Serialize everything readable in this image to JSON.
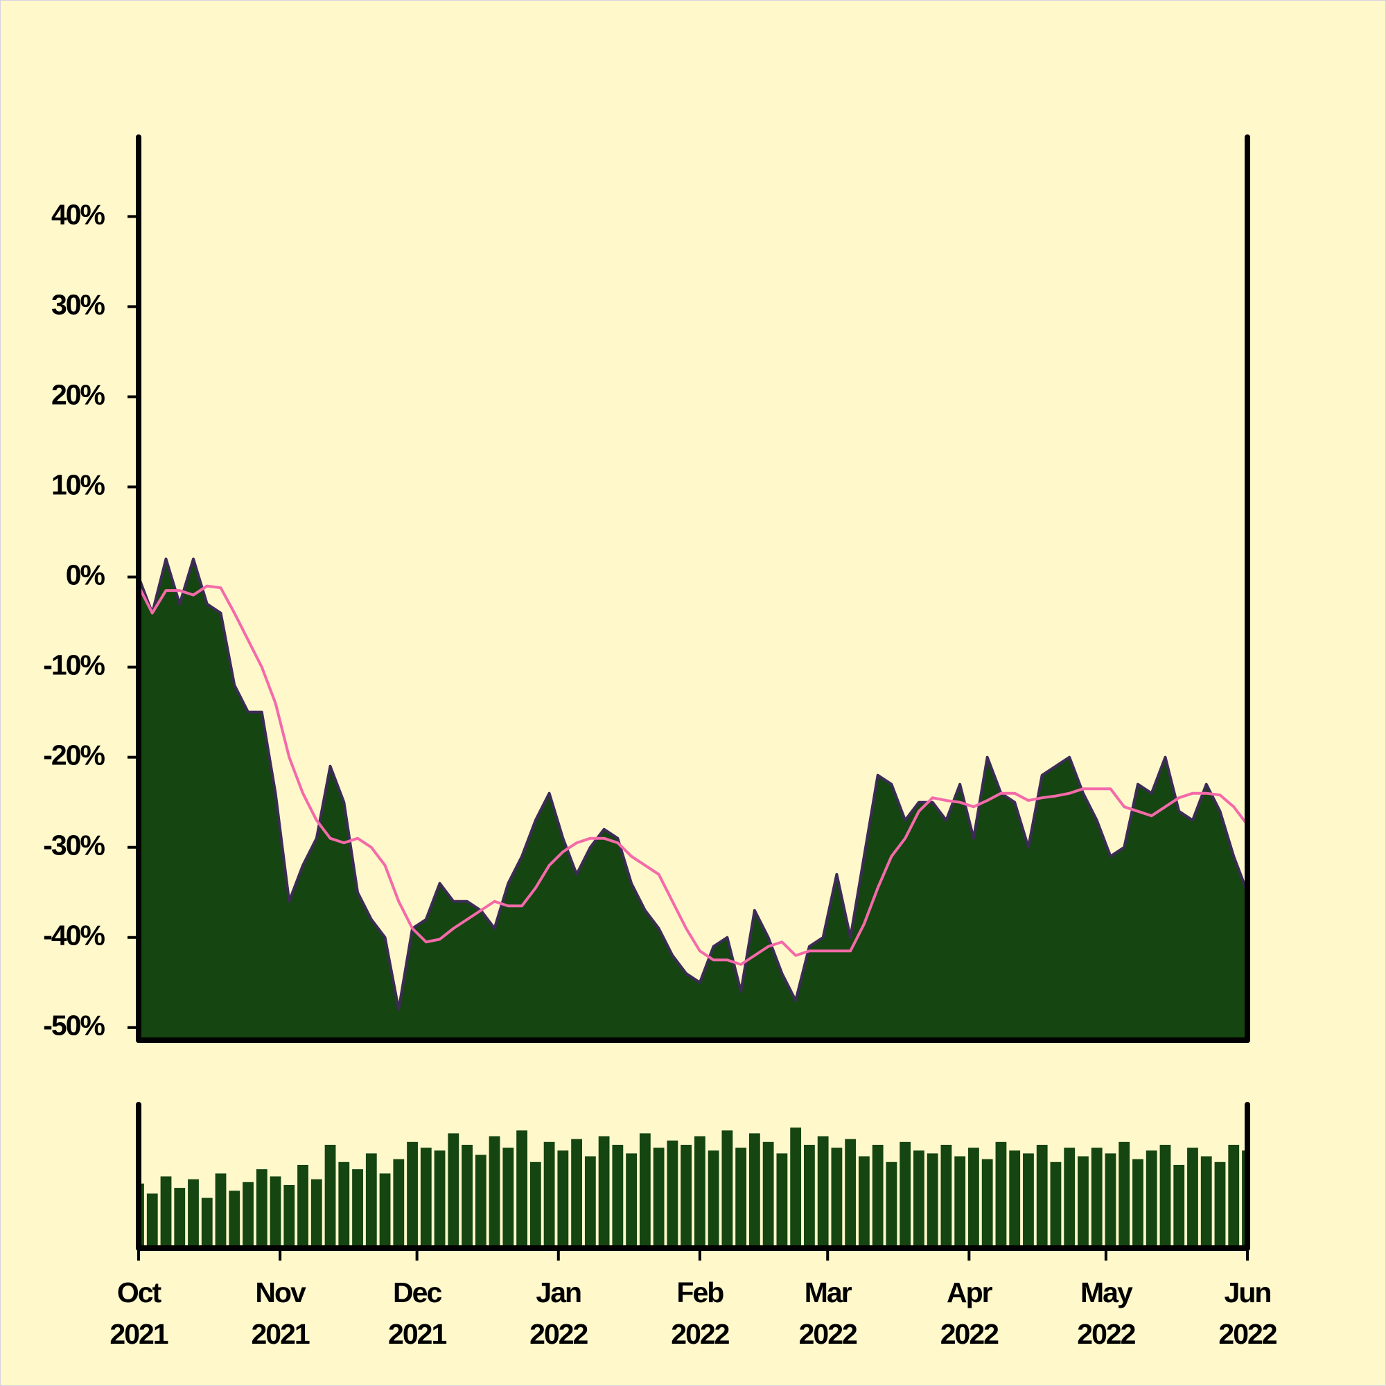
{
  "chart_data": [
    {
      "type": "area",
      "x": [
        0,
        3,
        6,
        9,
        12,
        15,
        18,
        21,
        24,
        27,
        30,
        33,
        36,
        39,
        42,
        45,
        48,
        51,
        54,
        57,
        60,
        63,
        66,
        69,
        72,
        75,
        78,
        81,
        84,
        87,
        90,
        93,
        96,
        99,
        102,
        105,
        108,
        111,
        114,
        117,
        120,
        123,
        126,
        129,
        132,
        135,
        138,
        141,
        144,
        147,
        150,
        153,
        156,
        159,
        162,
        165,
        168,
        171,
        174,
        177,
        180,
        183,
        186,
        189,
        192,
        195,
        198,
        201,
        204,
        207,
        210,
        213,
        216,
        219,
        222,
        225,
        228,
        231,
        234,
        237,
        240,
        243
      ],
      "series": [
        {
          "type": "area",
          "color": "#154511",
          "line_color": "#3b2b55",
          "values": [
            0,
            -4,
            2,
            -3,
            2,
            -3,
            -4,
            -12,
            -15,
            -15,
            -24,
            -36,
            -32,
            -29,
            -21,
            -25,
            -35,
            -38,
            -40,
            -48,
            -39,
            -38,
            -34,
            -36,
            -36,
            -37,
            -39,
            -34,
            -31,
            -27,
            -24,
            -29,
            -33,
            -30,
            -28,
            -29,
            -34,
            -37,
            -39,
            -42,
            -44,
            -45,
            -41,
            -40,
            -46,
            -37,
            -40,
            -44,
            -47,
            -41,
            -40,
            -33,
            -40,
            -31,
            -22,
            -23,
            -27,
            -25,
            -25,
            -27,
            -23,
            -29,
            -20,
            -24,
            -25,
            -30,
            -22,
            -21,
            -20,
            -24,
            -27,
            -31,
            -30,
            -23,
            -24,
            -20,
            -26,
            -27,
            -23,
            -26,
            -31,
            -35
          ]
        },
        {
          "type": "line",
          "color": "#f46aa9",
          "values": [
            -1,
            -4,
            -1.5,
            -1.5,
            -2,
            -1,
            -1.2,
            -4,
            -7,
            -10,
            -14,
            -20,
            -24,
            -27,
            -29,
            -29.5,
            -29,
            -30,
            -32,
            -36,
            -39,
            -40.5,
            -40.2,
            -39,
            -38,
            -37,
            -36,
            -36.5,
            -36.5,
            -34.5,
            -32,
            -30.5,
            -29.5,
            -29,
            -29,
            -29.5,
            -31,
            -32,
            -33,
            -36,
            -39,
            -41.5,
            -42.5,
            -42.5,
            -43,
            -42,
            -41,
            -40.5,
            -42,
            -41.5,
            -41.5,
            -41.5,
            -41.5,
            -38.5,
            -34.5,
            -31,
            -29,
            -26,
            -24.5,
            -24.8,
            -25,
            -25.5,
            -24.8,
            -24,
            -24,
            -24.8,
            -24.5,
            -24.3,
            -24,
            -23.5,
            -23.5,
            -23.5,
            -25.5,
            -26,
            -26.5,
            -25.5,
            -24.5,
            -24,
            -24,
            -24.2,
            -25.5,
            -27.5
          ]
        }
      ],
      "xlim": [
        0,
        243
      ],
      "ylim": [
        -51.4,
        48.8
      ],
      "yticks": [
        {
          "value": -50,
          "label": "-50%"
        },
        {
          "value": -40,
          "label": "-40%"
        },
        {
          "value": -30,
          "label": "-30%"
        },
        {
          "value": -20,
          "label": "-20%"
        },
        {
          "value": -10,
          "label": "-10%"
        },
        {
          "value": 0,
          "label": "0%"
        },
        {
          "value": 10,
          "label": "10%"
        },
        {
          "value": 20,
          "label": "20%"
        },
        {
          "value": 30,
          "label": "30%"
        },
        {
          "value": 40,
          "label": "40%"
        }
      ]
    },
    {
      "type": "bar",
      "x": [
        0,
        3,
        6,
        9,
        12,
        15,
        18,
        21,
        24,
        27,
        30,
        33,
        36,
        39,
        42,
        45,
        48,
        51,
        54,
        57,
        60,
        63,
        66,
        69,
        72,
        75,
        78,
        81,
        84,
        87,
        90,
        93,
        96,
        99,
        102,
        105,
        108,
        111,
        114,
        117,
        120,
        123,
        126,
        129,
        132,
        135,
        138,
        141,
        144,
        147,
        150,
        153,
        156,
        159,
        162,
        165,
        168,
        171,
        174,
        177,
        180,
        183,
        186,
        189,
        192,
        195,
        198,
        201,
        204,
        207,
        210,
        213,
        216,
        219,
        222,
        225,
        228,
        231,
        234,
        237,
        240,
        243
      ],
      "values": [
        45,
        38,
        50,
        42,
        48,
        35,
        52,
        40,
        46,
        55,
        50,
        44,
        58,
        48,
        72,
        60,
        55,
        66,
        52,
        62,
        74,
        70,
        68,
        80,
        72,
        65,
        78,
        70,
        82,
        60,
        74,
        68,
        76,
        64,
        78,
        72,
        66,
        80,
        70,
        75,
        72,
        78,
        68,
        82,
        70,
        80,
        74,
        66,
        84,
        72,
        78,
        70,
        76,
        64,
        72,
        60,
        74,
        68,
        66,
        72,
        64,
        70,
        62,
        74,
        68,
        66,
        72,
        60,
        70,
        64,
        70,
        66,
        74,
        62,
        68,
        72,
        58,
        70,
        64,
        60,
        72,
        68
      ],
      "color": "#154511",
      "xlim": [
        0,
        243
      ],
      "ylim": [
        0,
        100
      ],
      "xticks": [
        {
          "value": 0,
          "label": "Oct\n2021"
        },
        {
          "value": 31,
          "label": "Nov\n2021"
        },
        {
          "value": 61,
          "label": "Dec\n2021"
        },
        {
          "value": 92,
          "label": "Jan\n2022"
        },
        {
          "value": 123,
          "label": "Feb\n2022"
        },
        {
          "value": 151,
          "label": "Mar\n2022"
        },
        {
          "value": 182,
          "label": "Apr\n2022"
        },
        {
          "value": 212,
          "label": "May\n2022"
        },
        {
          "value": 243,
          "label": "Jun\n2022"
        }
      ]
    }
  ]
}
